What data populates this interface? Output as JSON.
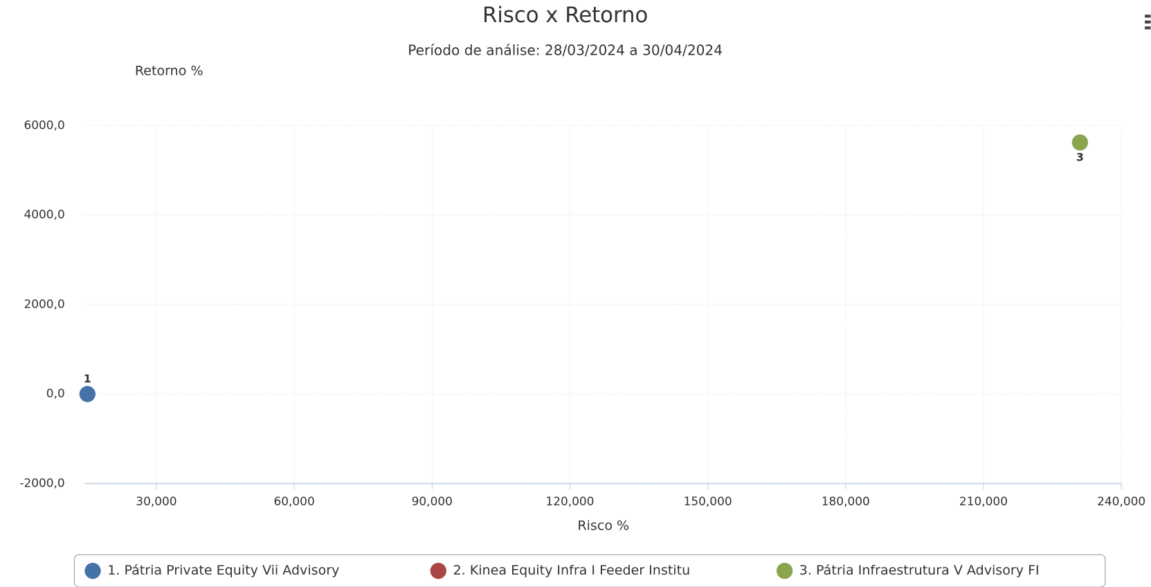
{
  "chart_data": {
    "type": "scatter",
    "title": "Risco x Retorno",
    "subtitle": "Período de análise: 28/03/2024 a 30/04/2024",
    "y_label": "Retorno %",
    "x_label": "Risco %",
    "xlim": [
      14.4,
      240
    ],
    "ylim": [
      -2000,
      6000
    ],
    "xticks": [
      {
        "value": 30,
        "label": "30,000"
      },
      {
        "value": 60,
        "label": "60,000"
      },
      {
        "value": 90,
        "label": "90,000"
      },
      {
        "value": 120,
        "label": "120,000"
      },
      {
        "value": 150,
        "label": "150,000"
      },
      {
        "value": 180,
        "label": "180,000"
      },
      {
        "value": 210,
        "label": "210,000"
      },
      {
        "value": 240,
        "label": "240,000"
      }
    ],
    "yticks": [
      {
        "value": -2000,
        "label": "-2000,0"
      },
      {
        "value": 0,
        "label": "0,0"
      },
      {
        "value": 2000,
        "label": "2000,0"
      },
      {
        "value": 4000,
        "label": "4000,0"
      },
      {
        "value": 6000,
        "label": "6000,0"
      }
    ],
    "grid": true,
    "series": [
      {
        "name": "1. Pátria Private Equity Vii Advisory",
        "color": "#4572a7",
        "x": [
          15
        ],
        "values": [
          0
        ],
        "point_labels": [
          "1"
        ],
        "label_position": "above"
      },
      {
        "name": "2. Kinea Equity Infra I Feeder Institu",
        "color": "#aa4643",
        "x": [],
        "values": [],
        "point_labels": [],
        "label_position": "above"
      },
      {
        "name": "3. Pátria Infraestrutura V Advisory FI",
        "color": "#89a54e",
        "x": [
          231
        ],
        "values": [
          5620
        ],
        "point_labels": [
          "3"
        ],
        "label_position": "below"
      }
    ]
  }
}
